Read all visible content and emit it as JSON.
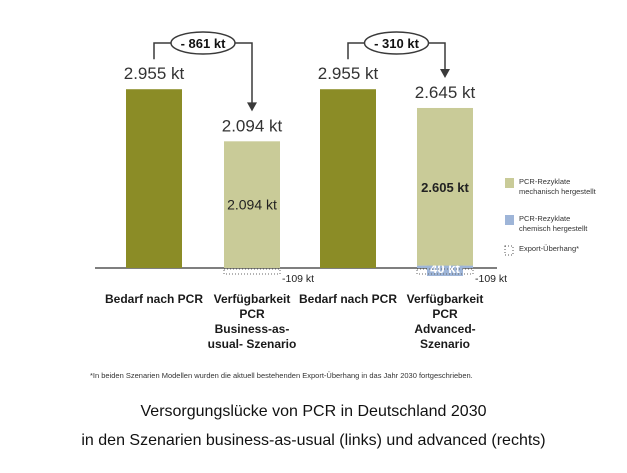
{
  "chart_data": {
    "type": "bar",
    "unit": "kt",
    "categories": [
      [
        "Bedarf nach PCR"
      ],
      [
        "Verfügbarkeit",
        "PCR",
        "Business-as-",
        "usual- Szenario"
      ],
      [
        "Bedarf nach PCR"
      ],
      [
        "Verfügbarkeit",
        "PCR",
        "Advanced-",
        "Szenario"
      ]
    ],
    "bars": [
      {
        "total": 2955,
        "total_label": "2.955 kt",
        "segments": [
          {
            "series": "demand",
            "value": 2955
          }
        ]
      },
      {
        "total": 2094,
        "total_label": "2.094 kt",
        "segments": [
          {
            "series": "mech",
            "value": 2094,
            "label": "2.094 kt"
          }
        ],
        "export": -109,
        "export_label": "-109 kt"
      },
      {
        "total": 2955,
        "total_label": "2.955 kt",
        "segments": [
          {
            "series": "demand",
            "value": 2955
          }
        ]
      },
      {
        "total": 2645,
        "total_label": "2.645 kt",
        "segments": [
          {
            "series": "chem",
            "value": 40,
            "label": "40 kt"
          },
          {
            "series": "mech",
            "value": 2605,
            "label": "2.605 kt"
          }
        ],
        "export": -109,
        "export_label": "-109 kt"
      }
    ],
    "gaps": [
      {
        "from": 0,
        "to": 1,
        "value": -861,
        "label": "- 861 kt"
      },
      {
        "from": 2,
        "to": 3,
        "value": -310,
        "label": "- 310 kt"
      }
    ],
    "legend": [
      {
        "series": "mech",
        "label": [
          "PCR-Rezyklate",
          "mechanisch hergestellt"
        ],
        "color": "#c9cb98"
      },
      {
        "series": "chem",
        "label": [
          "PCR-Rezyklate",
          "chemisch hergestellt"
        ],
        "color": "#9eb5d8"
      },
      {
        "series": "export",
        "label": [
          "Export-Überhang*"
        ],
        "color": "#555555"
      }
    ],
    "legend_position": "right",
    "colors": {
      "demand": "#8b8c26",
      "mech": "#c9cb98",
      "chem": "#9eb5d8",
      "axis": "#555555"
    },
    "ylim": [
      0,
      3200
    ],
    "grid": false
  },
  "footnote": "*In beiden Szenarien Modellen wurden die aktuell bestehenden Export-Überhang in das Jahr 2030 fortgeschrieben.",
  "caption": {
    "line1": "Versorgungslücke von PCR in Deutschland 2030",
    "line2": "in den Szenarien business-as-usual (links) und advanced (rechts)"
  }
}
